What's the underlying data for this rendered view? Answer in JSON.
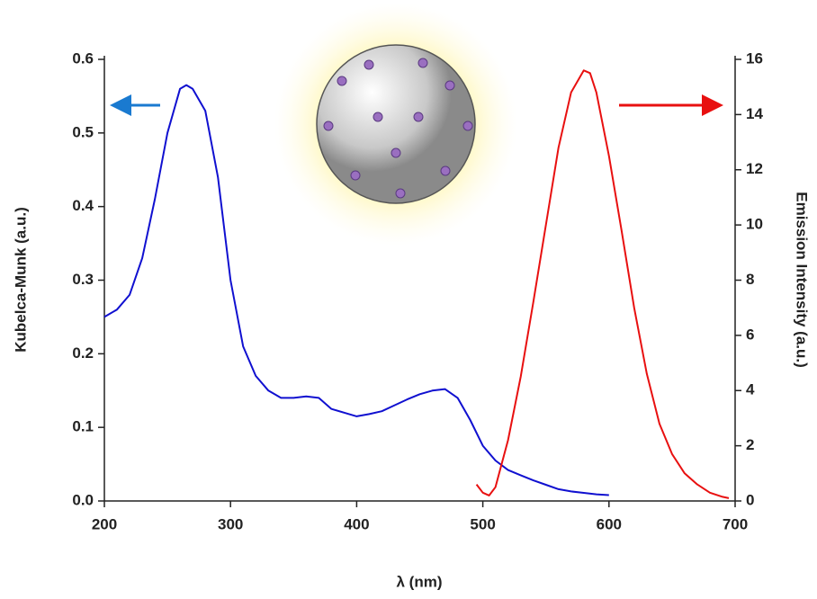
{
  "chart_data": {
    "type": "line",
    "xlabel": "λ (nm)",
    "ylabel": "Kubelca-Munk (a.u.)",
    "y2label": "Emission Intensity (a.u.)",
    "xlim": [
      200,
      700
    ],
    "xticks": [
      200,
      300,
      400,
      500,
      600,
      700
    ],
    "ylim": [
      0,
      0.6
    ],
    "yticks": [
      {
        "value": 0,
        "label": "0.0"
      },
      0.1,
      0.2,
      0.3,
      0.4,
      0.5,
      0.6
    ],
    "y2lim": [
      0,
      16
    ],
    "y2ticks": [
      0,
      2,
      4,
      6,
      8,
      10,
      12,
      14,
      16
    ],
    "series": [
      {
        "color": "#1010d0",
        "x": [
          200,
          210,
          220,
          230,
          240,
          250,
          260,
          265,
          270,
          280,
          290,
          300,
          310,
          320,
          330,
          340,
          350,
          360,
          370,
          380,
          390,
          400,
          410,
          420,
          430,
          440,
          450,
          460,
          470,
          480,
          490,
          500,
          510,
          520,
          530,
          540,
          550,
          560,
          570,
          580,
          590,
          600
        ],
        "values": [
          0.25,
          0.26,
          0.28,
          0.33,
          0.41,
          0.5,
          0.56,
          0.565,
          0.56,
          0.53,
          0.44,
          0.3,
          0.21,
          0.17,
          0.15,
          0.14,
          0.14,
          0.142,
          0.14,
          0.125,
          0.12,
          0.115,
          0.118,
          0.122,
          0.13,
          0.138,
          0.145,
          0.15,
          0.152,
          0.14,
          0.11,
          0.075,
          0.055,
          0.042,
          0.035,
          0.028,
          0.022,
          0.016,
          0.013,
          0.011,
          0.009,
          0.008
        ]
      },
      {
        "color": "#e81010",
        "axis": "y2",
        "x": [
          495,
          500,
          505,
          510,
          520,
          530,
          540,
          550,
          560,
          570,
          580,
          585,
          590,
          600,
          610,
          620,
          630,
          640,
          650,
          660,
          670,
          680,
          690,
          695
        ],
        "values": [
          0.6,
          0.3,
          0.2,
          0.5,
          2.2,
          4.5,
          7.2,
          10.0,
          12.8,
          14.8,
          15.6,
          15.5,
          14.8,
          12.5,
          9.8,
          7.0,
          4.6,
          2.8,
          1.7,
          1.0,
          0.6,
          0.3,
          0.15,
          0.1
        ]
      }
    ]
  }
}
